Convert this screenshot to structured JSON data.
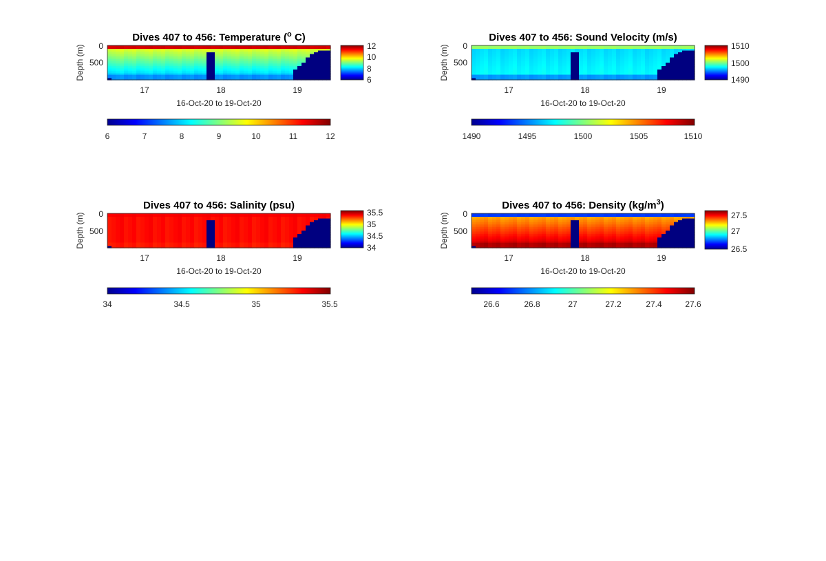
{
  "chart_data": [
    {
      "type": "heatmap",
      "title": "Dives 407 to 456: Temperature (",
      "title_sup": "o",
      "title_tail": " C)",
      "ylabel": "Depth (m)",
      "xlabel": "16-Oct-20 to 19-Oct-20",
      "x_ticks": [
        "17",
        "18",
        "19"
      ],
      "y_ticks": [
        "0",
        "500"
      ],
      "clim": [
        6,
        12
      ],
      "side_colorbar_ticks": [
        "12",
        "10",
        "8",
        "6"
      ],
      "bottom_colorbar_ticks": [
        "6",
        "7",
        "8",
        "9",
        "10",
        "11",
        "12"
      ],
      "field": {
        "surface": 11.5,
        "base": 9.6,
        "bottom": 8.0,
        "dip": 7.6,
        "shelf_value": 6
      }
    },
    {
      "type": "heatmap",
      "title": "Dives 407 to 456: Sound Velocity (m/s)",
      "ylabel": "Depth (m)",
      "xlabel": "16-Oct-20 to 19-Oct-20",
      "x_ticks": [
        "17",
        "18",
        "19"
      ],
      "y_ticks": [
        "0",
        "500"
      ],
      "clim": [
        1490,
        1510
      ],
      "side_colorbar_ticks": [
        "1510",
        "1500",
        "1490"
      ],
      "bottom_colorbar_ticks": [
        "1490",
        "1495",
        "1500",
        "1505",
        "1510"
      ],
      "field": {
        "surface": 1500.5,
        "base": 1496.8,
        "bottom": 1497.5,
        "dip": 1495.5,
        "shelf_value": 1490
      }
    },
    {
      "type": "heatmap",
      "title": "Dives 407 to 456: Salinity (psu)",
      "ylabel": "Depth (m)",
      "xlabel": "16-Oct-20 to 19-Oct-20",
      "x_ticks": [
        "17",
        "18",
        "19"
      ],
      "y_ticks": [
        "0",
        "500"
      ],
      "clim": [
        34,
        35.5
      ],
      "side_colorbar_ticks": [
        "35.5",
        "35",
        "34.5",
        "34"
      ],
      "bottom_colorbar_ticks": [
        "34",
        "34.5",
        "35",
        "35.5"
      ],
      "field": {
        "surface": 35.32,
        "base": 35.3,
        "bottom": 35.3,
        "dip": 35.28,
        "shelf_value": 34
      }
    },
    {
      "type": "heatmap",
      "title": "Dives 407 to 456: Density (kg/m",
      "title_sup": "3",
      "title_tail": ")",
      "ylabel": "Depth (m)",
      "xlabel": "16-Oct-20 to 19-Oct-20",
      "x_ticks": [
        "17",
        "18",
        "19"
      ],
      "y_ticks": [
        "0",
        "500"
      ],
      "clim": [
        26.5,
        27.6
      ],
      "side_colorbar_ticks": [
        "27.5",
        "27",
        "26.5"
      ],
      "bottom_colorbar_ticks": [
        "26.6",
        "26.8",
        "27",
        "27.2",
        "27.4",
        "27.6"
      ],
      "field": {
        "surface": 26.7,
        "base": 27.28,
        "bottom": 27.5,
        "dip": 27.55,
        "shelf_value": 26.5
      }
    }
  ],
  "colors": {
    "background": "#ffffff",
    "text": "#262626",
    "title": "#000000",
    "colormap": "jet"
  }
}
